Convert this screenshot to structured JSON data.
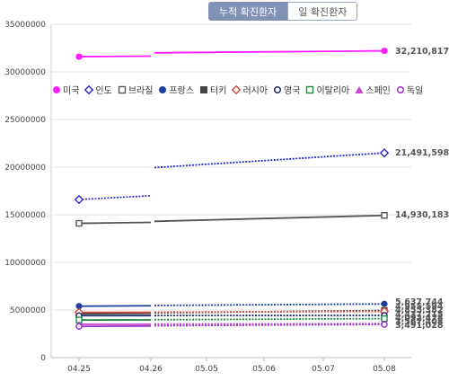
{
  "tabs": [
    {
      "label": "누적 확진환자",
      "active": true
    },
    {
      "label": "일 확진환자",
      "active": false
    }
  ],
  "chart_data": {
    "type": "line",
    "title": "",
    "xlabel": "",
    "ylabel": "",
    "x": [
      "04.25",
      "04.26",
      "05.05",
      "05.06",
      "05.07",
      "05.08"
    ],
    "ylim": [
      0,
      35000000
    ],
    "yticks": [
      0,
      5000000,
      10000000,
      15000000,
      20000000,
      25000000,
      30000000,
      35000000
    ],
    "grid": {
      "horizontal": true,
      "vertical": false
    },
    "legend": "top-left",
    "series": [
      {
        "name": "미국",
        "color": "#ff1aff",
        "marker": "filled-circle",
        "values": [
          31600000,
          31650000,
          null,
          null,
          null,
          32210817
        ],
        "end_label": "32,210,817"
      },
      {
        "name": "인도",
        "color": "#2727cc",
        "marker": "hollow-diamond",
        "values": [
          16600000,
          17000000,
          null,
          null,
          null,
          21491598
        ],
        "end_label": "21,491,598"
      },
      {
        "name": "브라질",
        "color": "#555555",
        "marker": "hollow-square",
        "values": [
          14100000,
          14200000,
          null,
          null,
          null,
          14930183
        ],
        "end_label": "14,930,183"
      },
      {
        "name": "프랑스",
        "color": "#1f3f9f",
        "marker": "filled-circle",
        "values": [
          5400000,
          5450000,
          null,
          null,
          null,
          5637744
        ],
        "end_label": "5,637,744"
      },
      {
        "name": "터키",
        "color": "#444444",
        "marker": "filled-square",
        "values": [
          4600000,
          4650000,
          null,
          null,
          null,
          4955594
        ],
        "end_label": "4,955,594"
      },
      {
        "name": "러시아",
        "color": "#d24b3c",
        "marker": "hollow-diamond",
        "values": [
          4750000,
          4760000,
          null,
          null,
          null,
          4855382
        ],
        "end_label": "4,855,382"
      },
      {
        "name": "영국",
        "color": "#1b2b6b",
        "marker": "hollow-circle",
        "values": [
          4410000,
          4415000,
          null,
          null,
          null,
          4437215
        ],
        "end_label": "4,437,215"
      },
      {
        "name": "이탈리아",
        "color": "#1e8a3a",
        "marker": "hollow-square",
        "values": [
          3950000,
          3965000,
          null,
          null,
          null,
          4092478
        ],
        "end_label": "4,092,478"
      },
      {
        "name": "스페인",
        "color": "#cc44cc",
        "marker": "filled-triangle",
        "values": [
          3500000,
          3510000,
          null,
          null,
          null,
          3567408
        ],
        "end_label": "3,567,408"
      },
      {
        "name": "독일",
        "color": "#9a33cc",
        "marker": "hollow-circle",
        "values": [
          3280000,
          3320000,
          null,
          null,
          null,
          3491028
        ],
        "end_label": "3,491,028"
      }
    ]
  }
}
